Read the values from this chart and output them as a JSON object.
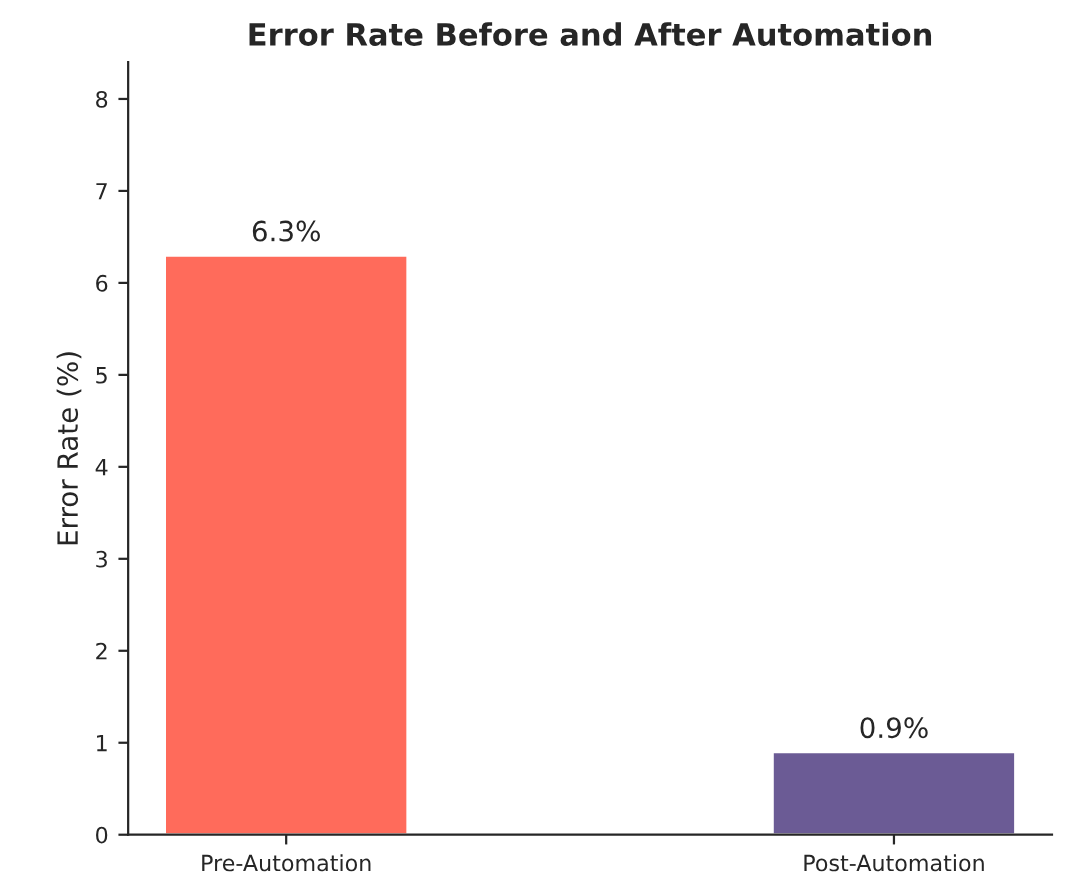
{
  "chart_data": {
    "type": "bar",
    "title": "Error Rate Before and After Automation",
    "ylabel": "Error Rate (%)",
    "categories": [
      "Pre-Automation",
      "Post-Automation"
    ],
    "values": [
      6.3,
      0.9
    ],
    "colors": [
      "#ff6b5b",
      "#6b5b95"
    ],
    "value_labels": [
      "6.3%",
      "0.9%"
    ],
    "ylim": [
      0,
      8.4
    ],
    "yticks": [
      0,
      1,
      2,
      3,
      4,
      5,
      6,
      7,
      8
    ],
    "grid": false,
    "legend": false
  }
}
